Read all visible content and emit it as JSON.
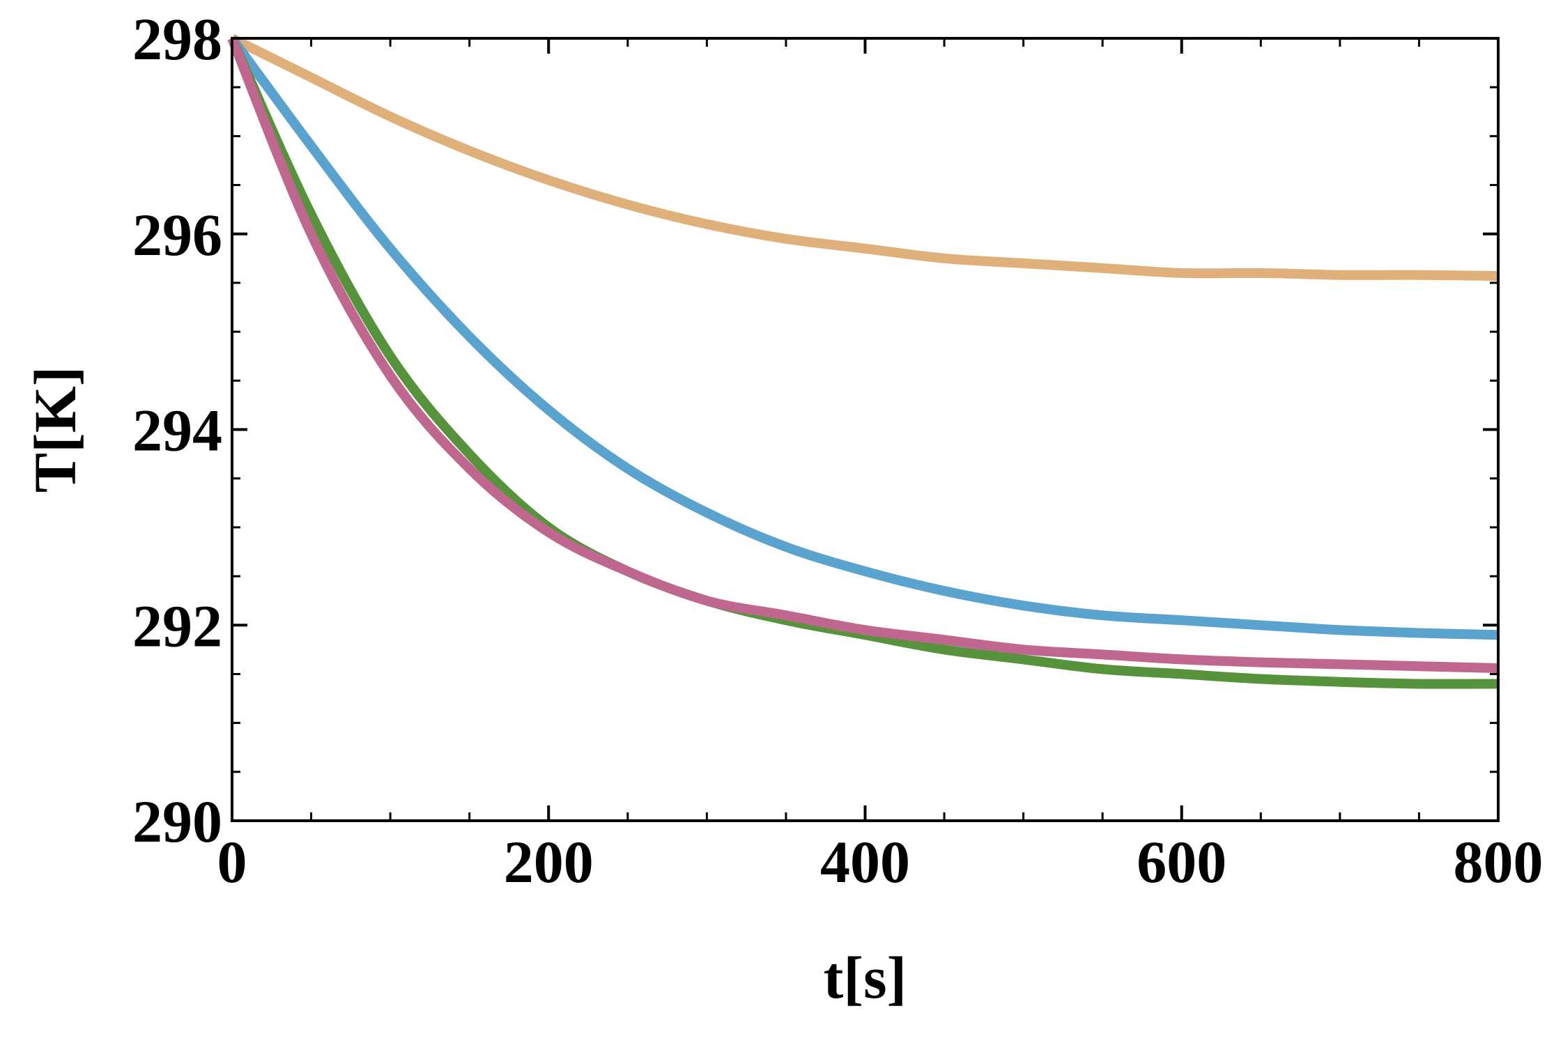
{
  "chart_data": {
    "type": "line",
    "title": "",
    "xlabel": "t[s]",
    "ylabel": "T[K]",
    "xlim": [
      0,
      800
    ],
    "ylim": [
      290,
      298
    ],
    "x_ticks": [
      0,
      200,
      400,
      600,
      800
    ],
    "y_ticks": [
      290,
      292,
      294,
      296,
      298
    ],
    "grid": false,
    "legend": "none",
    "series": [
      {
        "color": "#dfb07a",
        "x": [
          0,
          50,
          100,
          150,
          200,
          250,
          300,
          350,
          400,
          450,
          500,
          550,
          600,
          650,
          700,
          750,
          800
        ],
        "y": [
          298.0,
          297.6,
          297.2,
          296.85,
          296.55,
          296.3,
          296.1,
          295.95,
          295.85,
          295.75,
          295.7,
          295.65,
          295.6,
          295.6,
          295.58,
          295.58,
          295.57
        ]
      },
      {
        "color": "#5aa3cf",
        "x": [
          0,
          50,
          100,
          150,
          200,
          250,
          300,
          350,
          400,
          450,
          500,
          550,
          600,
          650,
          700,
          750,
          800
        ],
        "y": [
          298.0,
          296.9,
          295.85,
          294.95,
          294.2,
          293.6,
          293.15,
          292.8,
          292.55,
          292.35,
          292.2,
          292.1,
          292.05,
          292.0,
          291.95,
          291.92,
          291.9
        ]
      },
      {
        "color": "#56933c",
        "x": [
          0,
          50,
          100,
          150,
          200,
          250,
          300,
          350,
          400,
          450,
          500,
          550,
          600,
          650,
          700,
          750,
          800
        ],
        "y": [
          298.0,
          296.2,
          294.75,
          293.75,
          293.0,
          292.55,
          292.25,
          292.05,
          291.9,
          291.75,
          291.65,
          291.55,
          291.5,
          291.45,
          291.42,
          291.4,
          291.4
        ]
      },
      {
        "color": "#c06790",
        "x": [
          0,
          50,
          100,
          150,
          200,
          250,
          300,
          350,
          400,
          450,
          500,
          550,
          600,
          650,
          700,
          750,
          800
        ],
        "y": [
          298.0,
          296.0,
          294.55,
          293.6,
          292.95,
          292.55,
          292.25,
          292.1,
          291.95,
          291.85,
          291.75,
          291.7,
          291.65,
          291.62,
          291.6,
          291.58,
          291.56
        ]
      }
    ]
  }
}
